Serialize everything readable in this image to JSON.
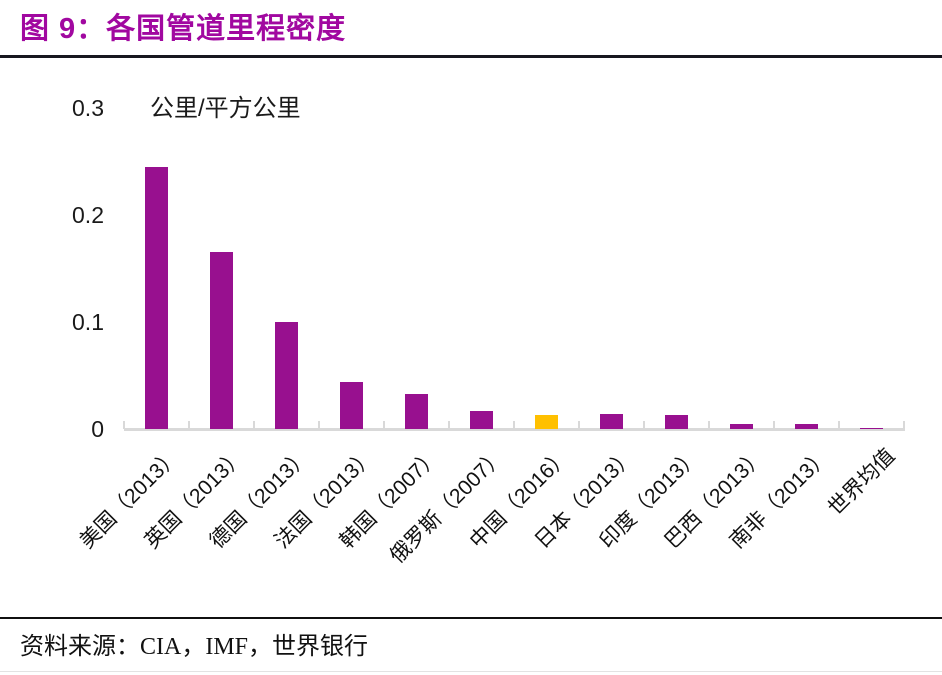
{
  "header": {
    "title": "图 9：各国管道里程密度"
  },
  "colors": {
    "title": "#a108a0",
    "bar": "#98108f",
    "highlight": "#ffc000",
    "axis": "#d9d9d9"
  },
  "chart_data": {
    "type": "bar",
    "title": "各国管道里程密度",
    "unit_label": "公里/平方公里",
    "xlabel": "",
    "ylabel": "公里/平方公里",
    "categories": [
      "美国（2013）",
      "英国（2013）",
      "德国（2013）",
      "法国（2013）",
      "韩国（2007）",
      "俄罗斯（2007）",
      "中国（2016）",
      "日本（2013）",
      "印度（2013）",
      "巴西（2013）",
      "南非（2013）",
      "世界均值"
    ],
    "values": [
      0.245,
      0.165,
      0.1,
      0.044,
      0.033,
      0.017,
      0.013,
      0.014,
      0.013,
      0.005,
      0.005,
      0.001
    ],
    "highlight_index": 6,
    "y_ticks": {
      "values": [
        0,
        0.1,
        0.2,
        0.3
      ],
      "labels": [
        "0",
        "0.1",
        "0.2",
        "0.3"
      ]
    },
    "ylim": [
      0,
      0.3
    ],
    "grid": false,
    "legend": null
  },
  "footer": {
    "source": "资料来源：CIA，IMF，世界银行"
  }
}
